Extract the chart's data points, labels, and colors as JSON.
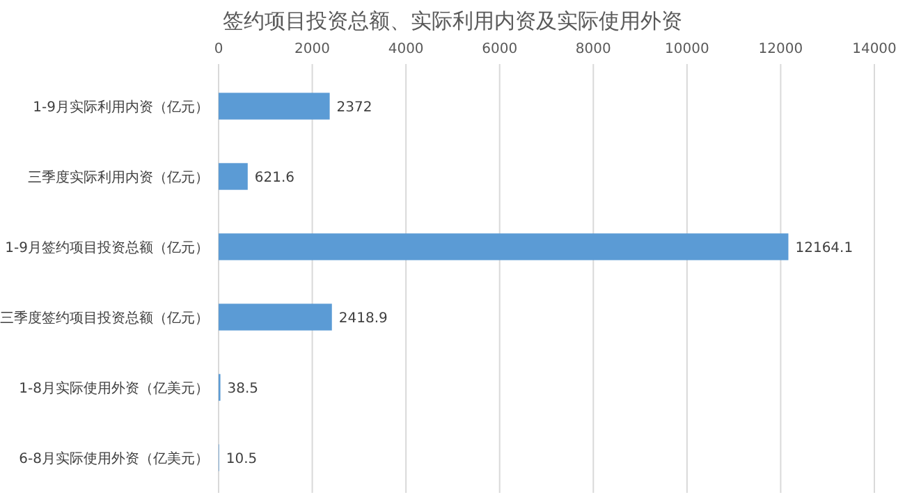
{
  "chart_data": {
    "type": "bar",
    "orientation": "horizontal",
    "title": "签约项目投资总额、实际利用内资及实际使用外资",
    "categories": [
      "1-9月实际利用内资（亿元）",
      "三季度实际利用内资（亿元）",
      "1-9月签约项目投资总额（亿元）",
      "三季度签约项目投资总额（亿元）",
      "1-8月实际使用外资（亿美元）",
      "6-8月实际使用外资（亿美元）"
    ],
    "values": [
      2372,
      621.6,
      12164.1,
      2418.9,
      38.5,
      10.5
    ],
    "color": "#5b9bd5",
    "xlim": [
      0,
      14000
    ],
    "xticks": [
      0,
      2000,
      4000,
      6000,
      8000,
      10000,
      12000,
      14000
    ],
    "grid": "x",
    "data_labels": true
  }
}
